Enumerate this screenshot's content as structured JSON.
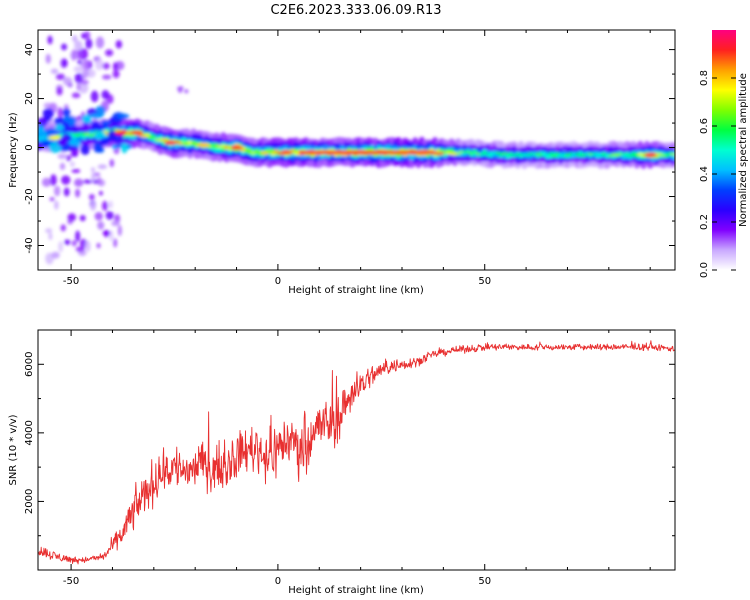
{
  "figure": {
    "title": "C2E6.2023.333.06.09.R13"
  },
  "chart_data": [
    {
      "type": "heatmap",
      "xlabel": "Height of straight line (km)",
      "ylabel": "Frequency (Hz)",
      "xlim": [
        -58,
        96
      ],
      "ylim": [
        -50,
        48
      ],
      "xticks": [
        -50,
        0,
        50
      ],
      "yticks": [
        -40,
        -20,
        0,
        20,
        40
      ],
      "grid": false,
      "colorbar": {
        "label": "Normalized spectral amplitude",
        "range": [
          0,
          1
        ],
        "ticks": [
          "0.0",
          "0.2",
          "0.4",
          "0.6",
          "0.8"
        ],
        "colormap": [
          "#ffffff",
          "#c9a8ff",
          "#8000ff",
          "#2a00ff",
          "#0040ff",
          "#00c0ff",
          "#00ffd0",
          "#00ff40",
          "#80ff00",
          "#ffff00",
          "#ffa000",
          "#ff2020",
          "#ff0080"
        ]
      },
      "ridge": [
        {
          "x": -58,
          "f": 4,
          "amp": 0.55
        },
        {
          "x": -54,
          "f": 4,
          "amp": 0.6
        },
        {
          "x": -50,
          "f": 5,
          "amp": 0.55
        },
        {
          "x": -46,
          "f": 5,
          "amp": 0.6
        },
        {
          "x": -42,
          "f": 6,
          "amp": 0.7
        },
        {
          "x": -38,
          "f": 6,
          "amp": 0.85
        },
        {
          "x": -34,
          "f": 6,
          "amp": 0.8
        },
        {
          "x": -30,
          "f": 4,
          "amp": 0.6
        },
        {
          "x": -26,
          "f": 2,
          "amp": 0.85
        },
        {
          "x": -22,
          "f": 2,
          "amp": 0.7
        },
        {
          "x": -18,
          "f": 1,
          "amp": 0.65
        },
        {
          "x": -14,
          "f": 0,
          "amp": 0.7
        },
        {
          "x": -10,
          "f": 0,
          "amp": 0.85
        },
        {
          "x": -6,
          "f": -2,
          "amp": 0.7
        },
        {
          "x": 0,
          "f": -2,
          "amp": 0.8
        },
        {
          "x": 5,
          "f": -2,
          "amp": 0.85
        },
        {
          "x": 10,
          "f": -2,
          "amp": 0.8
        },
        {
          "x": 20,
          "f": -2,
          "amp": 0.9
        },
        {
          "x": 30,
          "f": -2,
          "amp": 0.9
        },
        {
          "x": 38,
          "f": -2,
          "amp": 0.85
        },
        {
          "x": 45,
          "f": -2,
          "amp": 0.6
        },
        {
          "x": 55,
          "f": -3,
          "amp": 0.55
        },
        {
          "x": 65,
          "f": -3,
          "amp": 0.55
        },
        {
          "x": 75,
          "f": -3,
          "amp": 0.55
        },
        {
          "x": 85,
          "f": -3,
          "amp": 0.6
        },
        {
          "x": 90,
          "f": -3,
          "amp": 0.85
        },
        {
          "x": 94,
          "f": -3,
          "amp": 0.6
        }
      ]
    },
    {
      "type": "line",
      "xlabel": "Height of straight line (km)",
      "ylabel": "SNR (10 * v/v)",
      "xlim": [
        -58,
        96
      ],
      "ylim": [
        0,
        7000
      ],
      "xticks": [
        -50,
        0,
        50
      ],
      "yticks": [
        2000,
        4000,
        6000
      ],
      "grid": false,
      "series": [
        {
          "color": "#e83030",
          "envelope_x": [
            -58,
            -54,
            -50,
            -46,
            -42,
            -38,
            -34,
            -30,
            -26,
            -22,
            -18,
            -14,
            -10,
            -6,
            -2,
            2,
            6,
            10,
            14,
            18,
            22,
            26,
            30,
            34,
            38,
            42,
            46,
            50,
            60,
            70,
            80,
            90,
            96
          ],
          "envelope_y": [
            600,
            400,
            300,
            300,
            400,
            1000,
            1900,
            2600,
            3000,
            2900,
            3100,
            2900,
            3300,
            3600,
            3300,
            3800,
            3600,
            4200,
            4300,
            5200,
            5600,
            5900,
            6000,
            6100,
            6300,
            6400,
            6450,
            6500,
            6500,
            6500,
            6500,
            6500,
            6450
          ],
          "noise": [
            250,
            200,
            150,
            120,
            150,
            500,
            800,
            900,
            1000,
            900,
            900,
            800,
            900,
            1000,
            1100,
            1100,
            1100,
            1100,
            1000,
            700,
            500,
            300,
            250,
            200,
            150,
            150,
            150,
            150,
            130,
            130,
            130,
            130,
            130
          ]
        }
      ]
    }
  ]
}
